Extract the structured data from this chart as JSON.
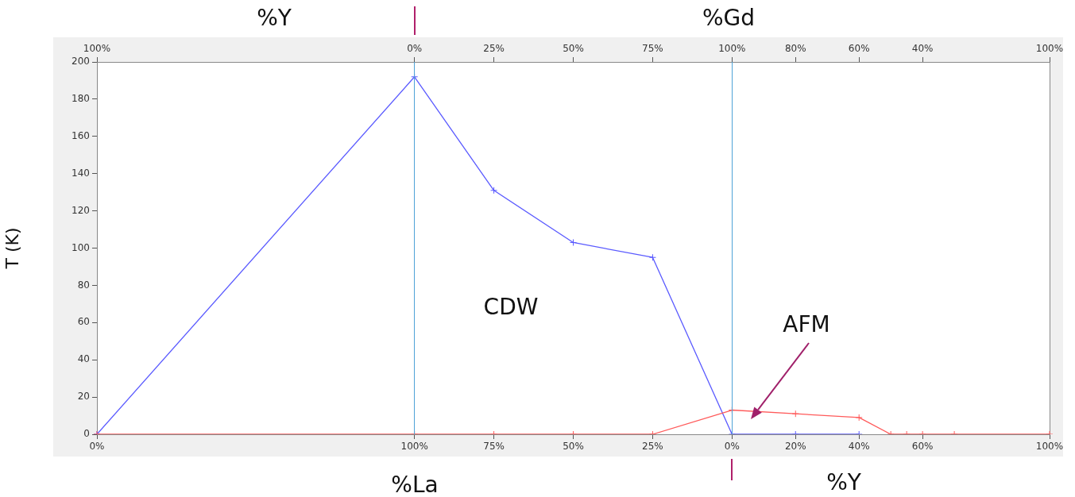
{
  "chart_data": {
    "type": "line",
    "ylabel": "T (K)",
    "annotations": [
      "%Y",
      "%Gd",
      "%La",
      "%Y",
      "CDW",
      "AFM",
      "100%",
      "0%",
      "25%",
      "50%",
      "75%",
      "100%",
      "80%",
      "60%",
      "40%",
      "100%"
    ],
    "categories": [
      "0%",
      null,
      null,
      null,
      null,
      null,
      null,
      null,
      null,
      null,
      null,
      null,
      null,
      null,
      null,
      null,
      null,
      null,
      null,
      null,
      "100%",
      null,
      null,
      null,
      null,
      "75%",
      null,
      null,
      null,
      null,
      "50%",
      null,
      null,
      null,
      null,
      "25%",
      null,
      null,
      null,
      null,
      "0%",
      null,
      null,
      null,
      "20%",
      null,
      null,
      null,
      "40%",
      null,
      null,
      null,
      "60%",
      null,
      null,
      null,
      null,
      null,
      null,
      null,
      "100%"
    ],
    "ylim": [
      0,
      200
    ],
    "yticks": [
      0,
      20,
      40,
      60,
      80,
      100,
      120,
      140,
      160,
      180,
      200
    ],
    "grid": false,
    "legend": false,
    "marker": "cross",
    "line_style": "solid",
    "series": [
      {
        "color": "#5a5aff",
        "values": [
          0,
          null,
          null,
          null,
          null,
          null,
          null,
          null,
          null,
          null,
          null,
          null,
          null,
          null,
          null,
          null,
          null,
          null,
          null,
          null,
          192,
          null,
          null,
          null,
          null,
          131,
          null,
          null,
          null,
          null,
          103,
          null,
          null,
          null,
          null,
          95,
          null,
          null,
          null,
          null,
          0,
          null,
          null,
          null,
          0,
          null,
          null,
          null,
          0,
          null,
          null,
          null,
          null,
          null,
          null,
          null,
          null,
          null,
          null,
          null,
          null
        ]
      },
      {
        "color": "#ff5a5a",
        "values": [
          0,
          null,
          null,
          null,
          null,
          null,
          null,
          null,
          null,
          null,
          null,
          null,
          null,
          null,
          null,
          null,
          null,
          null,
          null,
          null,
          0,
          null,
          null,
          null,
          null,
          0,
          null,
          null,
          null,
          null,
          0,
          null,
          null,
          null,
          null,
          0,
          null,
          null,
          null,
          null,
          13,
          null,
          null,
          null,
          11,
          null,
          null,
          null,
          9,
          null,
          0,
          0,
          0,
          null,
          0,
          null,
          null,
          null,
          null,
          null,
          0
        ]
      }
    ]
  }
}
